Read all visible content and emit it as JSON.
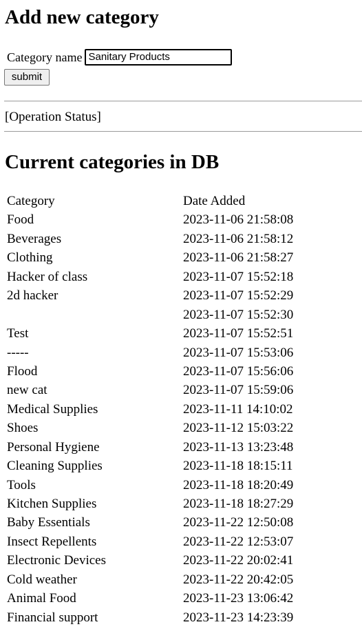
{
  "form": {
    "title": "Add new category",
    "label": "Category name",
    "input_value": "Sanitary Products",
    "submit_label": "submit"
  },
  "status_text": "[Operation Status]",
  "list_title": "Current categories in DB",
  "table": {
    "headers": [
      "Category",
      "Date Added"
    ],
    "rows": [
      [
        "Food",
        "2023-11-06 21:58:08"
      ],
      [
        "Beverages",
        "2023-11-06 21:58:12"
      ],
      [
        "Clothing",
        "2023-11-06 21:58:27"
      ],
      [
        "Hacker of class",
        "2023-11-07 15:52:18"
      ],
      [
        "2d hacker",
        "2023-11-07 15:52:29"
      ],
      [
        "",
        "2023-11-07 15:52:30"
      ],
      [
        "Test",
        "2023-11-07 15:52:51"
      ],
      [
        "-----",
        "2023-11-07 15:53:06"
      ],
      [
        "Flood",
        "2023-11-07 15:56:06"
      ],
      [
        "new cat",
        "2023-11-07 15:59:06"
      ],
      [
        "Medical Supplies",
        "2023-11-11 14:10:02"
      ],
      [
        "Shoes",
        "2023-11-12 15:03:22"
      ],
      [
        "Personal Hygiene",
        "2023-11-13 13:23:48"
      ],
      [
        "Cleaning Supplies",
        "2023-11-18 18:15:11"
      ],
      [
        "Tools",
        "2023-11-18 18:20:49"
      ],
      [
        "Kitchen Supplies",
        "2023-11-18 18:27:29"
      ],
      [
        "Baby Essentials",
        "2023-11-22 12:50:08"
      ],
      [
        "Insect Repellents",
        "2023-11-22 12:53:07"
      ],
      [
        "Electronic Devices",
        "2023-11-22 20:02:41"
      ],
      [
        "Cold weather",
        "2023-11-22 20:42:05"
      ],
      [
        "Animal Food",
        "2023-11-23 13:06:42"
      ],
      [
        "Financial support",
        "2023-11-23 14:23:39"
      ]
    ]
  }
}
